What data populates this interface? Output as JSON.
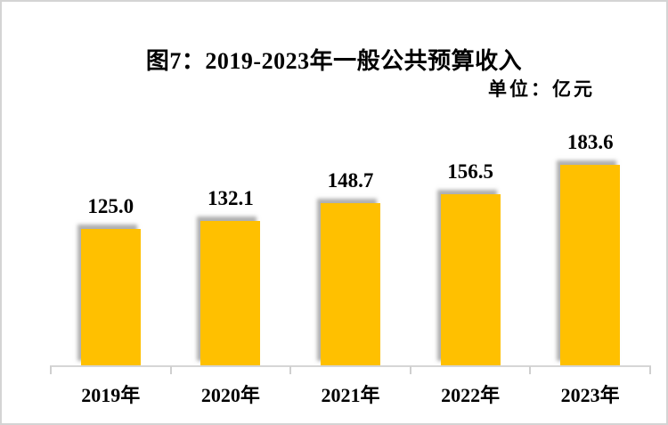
{
  "page": {
    "background_color": "#ffffff",
    "border_color": "#d4d4d4"
  },
  "header": {
    "title": "图7：2019-2023年一般公共预算收入",
    "unit_label": "单位：亿元"
  },
  "chart_data": {
    "type": "bar",
    "title": "图7：2019-2023年一般公共预算收入",
    "subtitle": "单位：亿元",
    "categories": [
      "2019年",
      "2020年",
      "2021年",
      "2022年",
      "2023年"
    ],
    "values": [
      125.0,
      132.1,
      148.7,
      156.5,
      183.6
    ],
    "data_labels": [
      "125.0",
      "132.1",
      "148.7",
      "156.5",
      "183.6"
    ],
    "xlabel": "",
    "ylabel": "亿元",
    "ylim": [
      0,
      200
    ],
    "grid": false,
    "legend_position": "none",
    "data_label_position": "above-bar",
    "bar_color": "#FFC000",
    "axis_color": "#D6D6D6",
    "text_color": "#000000"
  }
}
